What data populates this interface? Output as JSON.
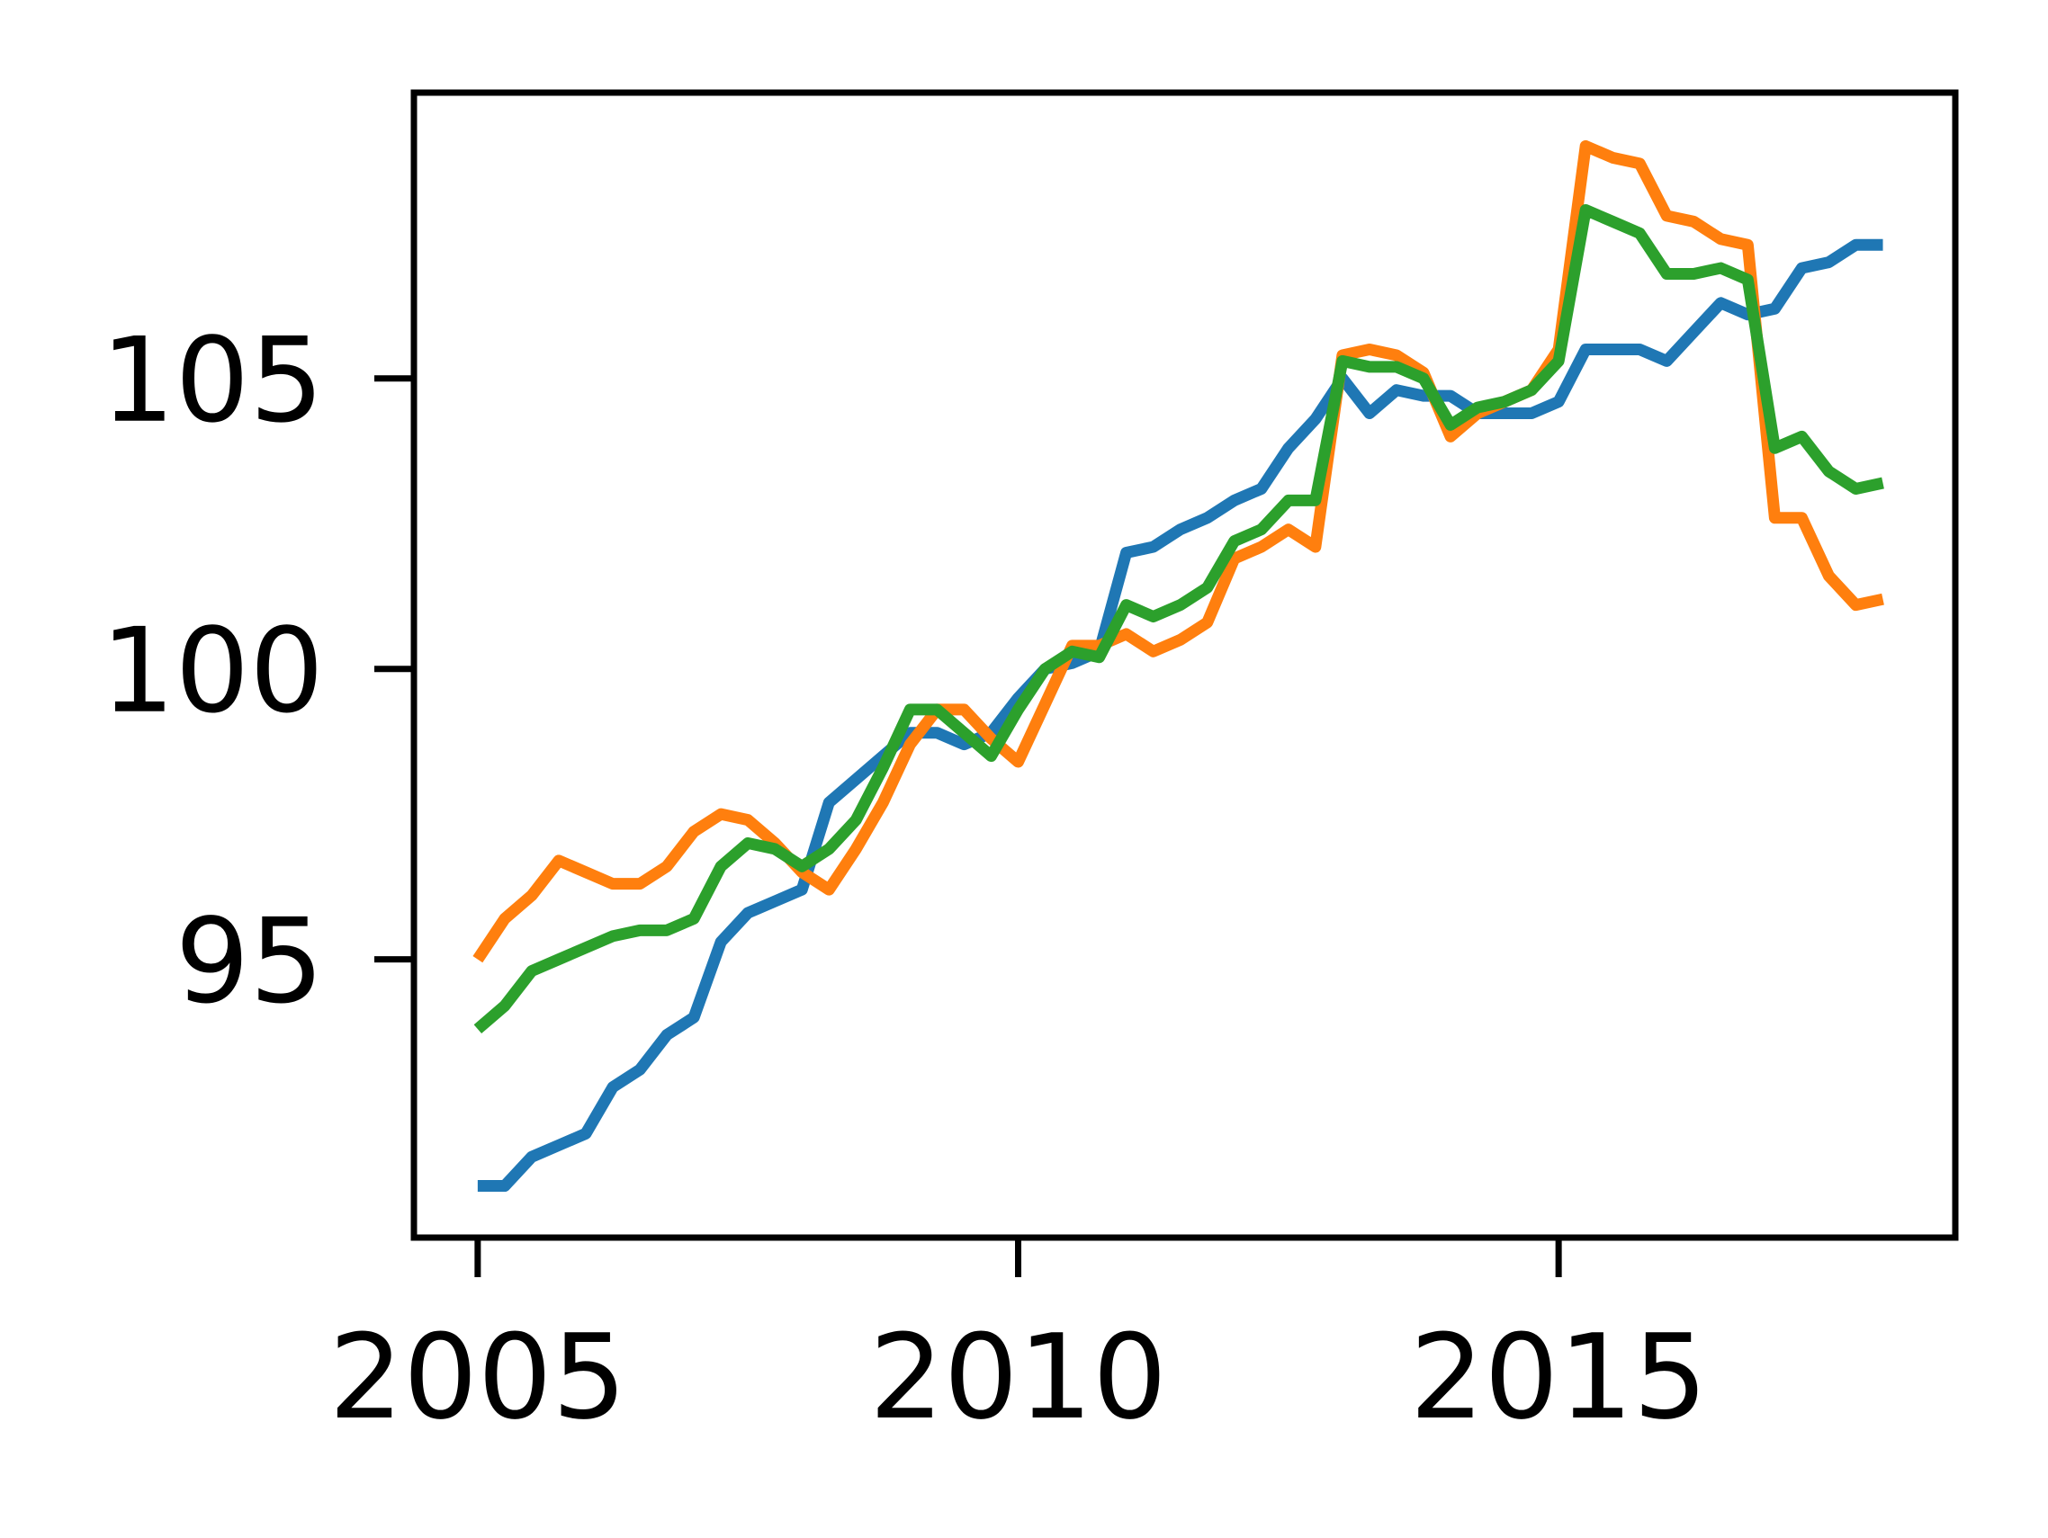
{
  "chart_data": {
    "type": "line",
    "x": [
      2005,
      2005.25,
      2005.5,
      2005.75,
      2006,
      2006.25,
      2006.5,
      2006.75,
      2007,
      2007.25,
      2007.5,
      2007.75,
      2008,
      2008.25,
      2008.5,
      2008.75,
      2009,
      2009.25,
      2009.5,
      2009.75,
      2010,
      2010.25,
      2010.5,
      2010.75,
      2011,
      2011.25,
      2011.5,
      2011.75,
      2012,
      2012.25,
      2012.5,
      2012.75,
      2013,
      2013.25,
      2013.5,
      2013.75,
      2014,
      2014.25,
      2014.5,
      2014.75,
      2015,
      2015.25,
      2015.5,
      2015.75,
      2016,
      2016.25,
      2016.5,
      2016.75,
      2017,
      2017.25,
      2017.5,
      2017.75,
      2018
    ],
    "series": [
      {
        "color": "#1f77b4",
        "values": [
          91.1,
          91.1,
          91.6,
          91.8,
          92.0,
          92.8,
          93.1,
          93.7,
          94.0,
          95.3,
          95.8,
          96.0,
          96.2,
          97.7,
          98.1,
          98.5,
          98.9,
          98.9,
          98.7,
          98.9,
          99.5,
          100.0,
          100.1,
          100.3,
          102.0,
          102.1,
          102.4,
          102.6,
          102.9,
          103.1,
          103.8,
          104.3,
          105.0,
          104.4,
          104.8,
          104.7,
          104.7,
          104.4,
          104.4,
          104.4,
          104.6,
          105.5,
          105.5,
          105.5,
          105.3,
          105.8,
          106.3,
          106.1,
          106.2,
          106.9,
          107.0,
          107.3,
          107.3
        ]
      },
      {
        "color": "#ff7f0e",
        "values": [
          95.0,
          95.7,
          96.1,
          96.7,
          96.5,
          96.3,
          96.3,
          96.6,
          97.2,
          97.5,
          97.4,
          97.0,
          96.5,
          96.2,
          96.9,
          97.7,
          98.7,
          99.3,
          99.3,
          98.8,
          98.4,
          99.4,
          100.4,
          100.4,
          100.6,
          100.3,
          100.5,
          100.8,
          101.9,
          102.1,
          102.4,
          102.1,
          105.4,
          105.5,
          105.4,
          105.1,
          104.0,
          104.4,
          104.6,
          104.8,
          105.5,
          109.0,
          108.8,
          108.7,
          107.8,
          107.7,
          107.4,
          107.3,
          102.6,
          102.6,
          101.6,
          101.1,
          101.2
        ]
      },
      {
        "color": "#2ca02c",
        "values": [
          93.8,
          94.2,
          94.8,
          95.0,
          95.2,
          95.4,
          95.5,
          95.5,
          95.7,
          96.6,
          97.0,
          96.9,
          96.6,
          96.9,
          97.4,
          98.3,
          99.3,
          99.3,
          98.9,
          98.5,
          99.3,
          100.0,
          100.3,
          100.2,
          101.1,
          100.9,
          101.1,
          101.4,
          102.2,
          102.4,
          102.9,
          102.9,
          105.3,
          105.2,
          105.2,
          105.0,
          104.2,
          104.5,
          104.6,
          104.8,
          105.3,
          107.9,
          107.7,
          107.5,
          106.8,
          106.8,
          106.9,
          106.7,
          103.8,
          104.0,
          103.4,
          103.1,
          103.2
        ]
      }
    ],
    "xlim": [
      2004.41,
      2018.67
    ],
    "xticks": [
      2005,
      2010,
      2015
    ],
    "ylim": [
      90.21,
      109.92
    ],
    "yticks": [
      95,
      100,
      105
    ],
    "grid": false
  }
}
